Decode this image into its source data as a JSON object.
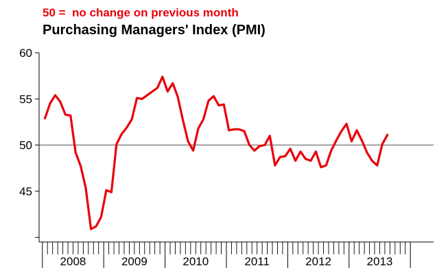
{
  "chart_data": {
    "type": "line",
    "subtitle": "50 =  no change on previous month",
    "title": "Purchasing Managers' Index (PMI)",
    "xlabel": "",
    "ylabel": "",
    "ylim": [
      39.5,
      60
    ],
    "yticks": [
      45,
      50,
      55,
      60
    ],
    "xticks": [
      "2008",
      "2009",
      "2010",
      "2011",
      "2012",
      "2013"
    ],
    "reference_line": 50,
    "grid": false,
    "line_color": "#e8000b",
    "x_start": "2008-01",
    "series": [
      {
        "values": [
          52.9,
          54.5,
          55.4,
          54.7,
          53.3,
          53.2,
          49.2,
          47.7,
          45.3,
          40.9,
          41.2,
          42.2,
          45.1,
          44.9,
          50.1,
          51.2,
          51.9,
          52.8,
          55.1,
          55.0,
          55.4,
          55.8,
          56.2,
          57.4,
          55.8,
          56.7,
          55.2,
          52.7,
          50.4,
          49.4,
          51.8,
          52.8,
          54.8,
          55.3,
          54.3,
          54.4,
          51.6,
          51.7,
          51.7,
          51.5,
          50.0,
          49.4,
          49.9,
          50.0,
          51.0,
          47.8,
          48.7,
          48.8,
          49.6,
          48.3,
          49.3,
          48.5,
          48.3,
          49.3,
          47.6,
          47.8,
          49.4,
          50.5,
          51.5,
          52.3,
          50.4,
          51.6,
          50.5,
          49.2,
          48.3,
          47.8,
          50.1,
          51.1
        ]
      }
    ]
  }
}
